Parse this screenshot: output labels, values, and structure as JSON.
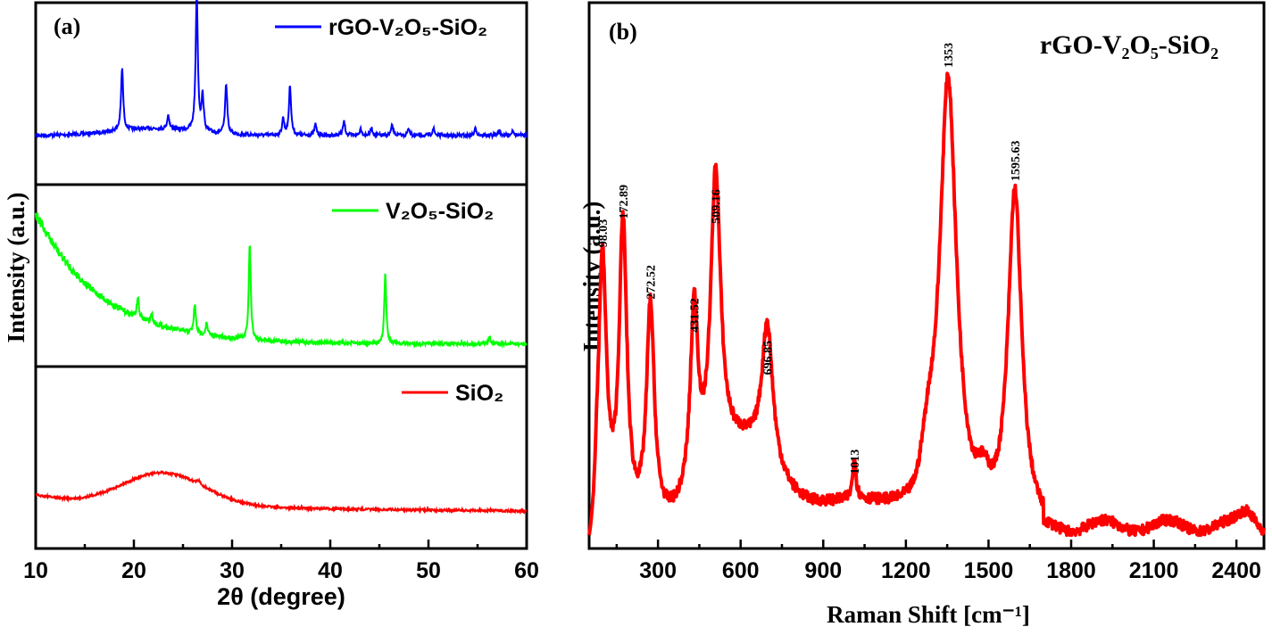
{
  "chart_data": [
    {
      "panel": "(a)",
      "type": "line",
      "xlabel": "2θ (degree)",
      "ylabel": "Intensity (a.u.)",
      "xlim": [
        10,
        60
      ],
      "xticks": [
        "10",
        "20",
        "30",
        "40",
        "50",
        "60"
      ],
      "grid": false,
      "layout": "three stacked sub-panels, legend top-right of each",
      "series": [
        {
          "name": "rGO-V₂O₅-SiO₂",
          "color": "#0000ff",
          "peaks_2theta": [
            18.8,
            23.5,
            26.4,
            27.0,
            29.4,
            35.2,
            35.9,
            38.5,
            41.4,
            43.1,
            44.2,
            46.3,
            48.0,
            50.5,
            54.8,
            57.2,
            58.6
          ],
          "peak_heights": [
            0.45,
            0.1,
            1.0,
            0.25,
            0.36,
            0.12,
            0.36,
            0.08,
            0.1,
            0.05,
            0.05,
            0.07,
            0.05,
            0.05,
            0.05,
            0.04,
            0.04
          ]
        },
        {
          "name": "V₂O₅-SiO₂",
          "color": "#00ff00",
          "background": "decaying from 10° (high) to ~40° (flat)",
          "peaks_2theta": [
            20.4,
            21.8,
            26.2,
            27.4,
            31.8,
            45.6,
            56.2
          ],
          "peak_heights": [
            0.13,
            0.06,
            0.18,
            0.07,
            0.6,
            0.43,
            0.05
          ]
        },
        {
          "name": "SiO₂",
          "color": "#ff0000",
          "broad_hump_center": 23,
          "peaks_2theta": [
            26.6
          ],
          "peak_heights": [
            0.03
          ]
        }
      ]
    },
    {
      "panel": "(b)",
      "type": "line",
      "title": "rGO-V₂O₅-SiO₂",
      "xlabel": "Raman Shift [cm⁻¹]",
      "ylabel": "Intensity (a.u.)",
      "xlim": [
        50,
        2500
      ],
      "xticks": [
        "300",
        "600",
        "900",
        "1200",
        "1500",
        "1800",
        "2100",
        "2400"
      ],
      "grid": false,
      "series": [
        {
          "name": "rGO-V₂O₅-SiO₂",
          "color": "#ff0000",
          "peaks": [
            {
              "x": 98.03,
              "label": "98.03",
              "height": 0.59
            },
            {
              "x": 172.89,
              "label": "172.89",
              "height": 0.65
            },
            {
              "x": 272.52,
              "label": "272.52",
              "height": 0.48
            },
            {
              "x": 431.52,
              "label": "431.52",
              "height": 0.41
            },
            {
              "x": 509.16,
              "label": "509.16",
              "height": 0.64
            },
            {
              "x": 696.85,
              "label": "696.85",
              "height": 0.32
            },
            {
              "x": 1013,
              "label": "1013",
              "height": 0.11
            },
            {
              "x": 1353,
              "label": "1353",
              "height": 0.97
            },
            {
              "x": 1595.63,
              "label": "1595.63",
              "height": 0.73
            }
          ]
        }
      ]
    }
  ]
}
